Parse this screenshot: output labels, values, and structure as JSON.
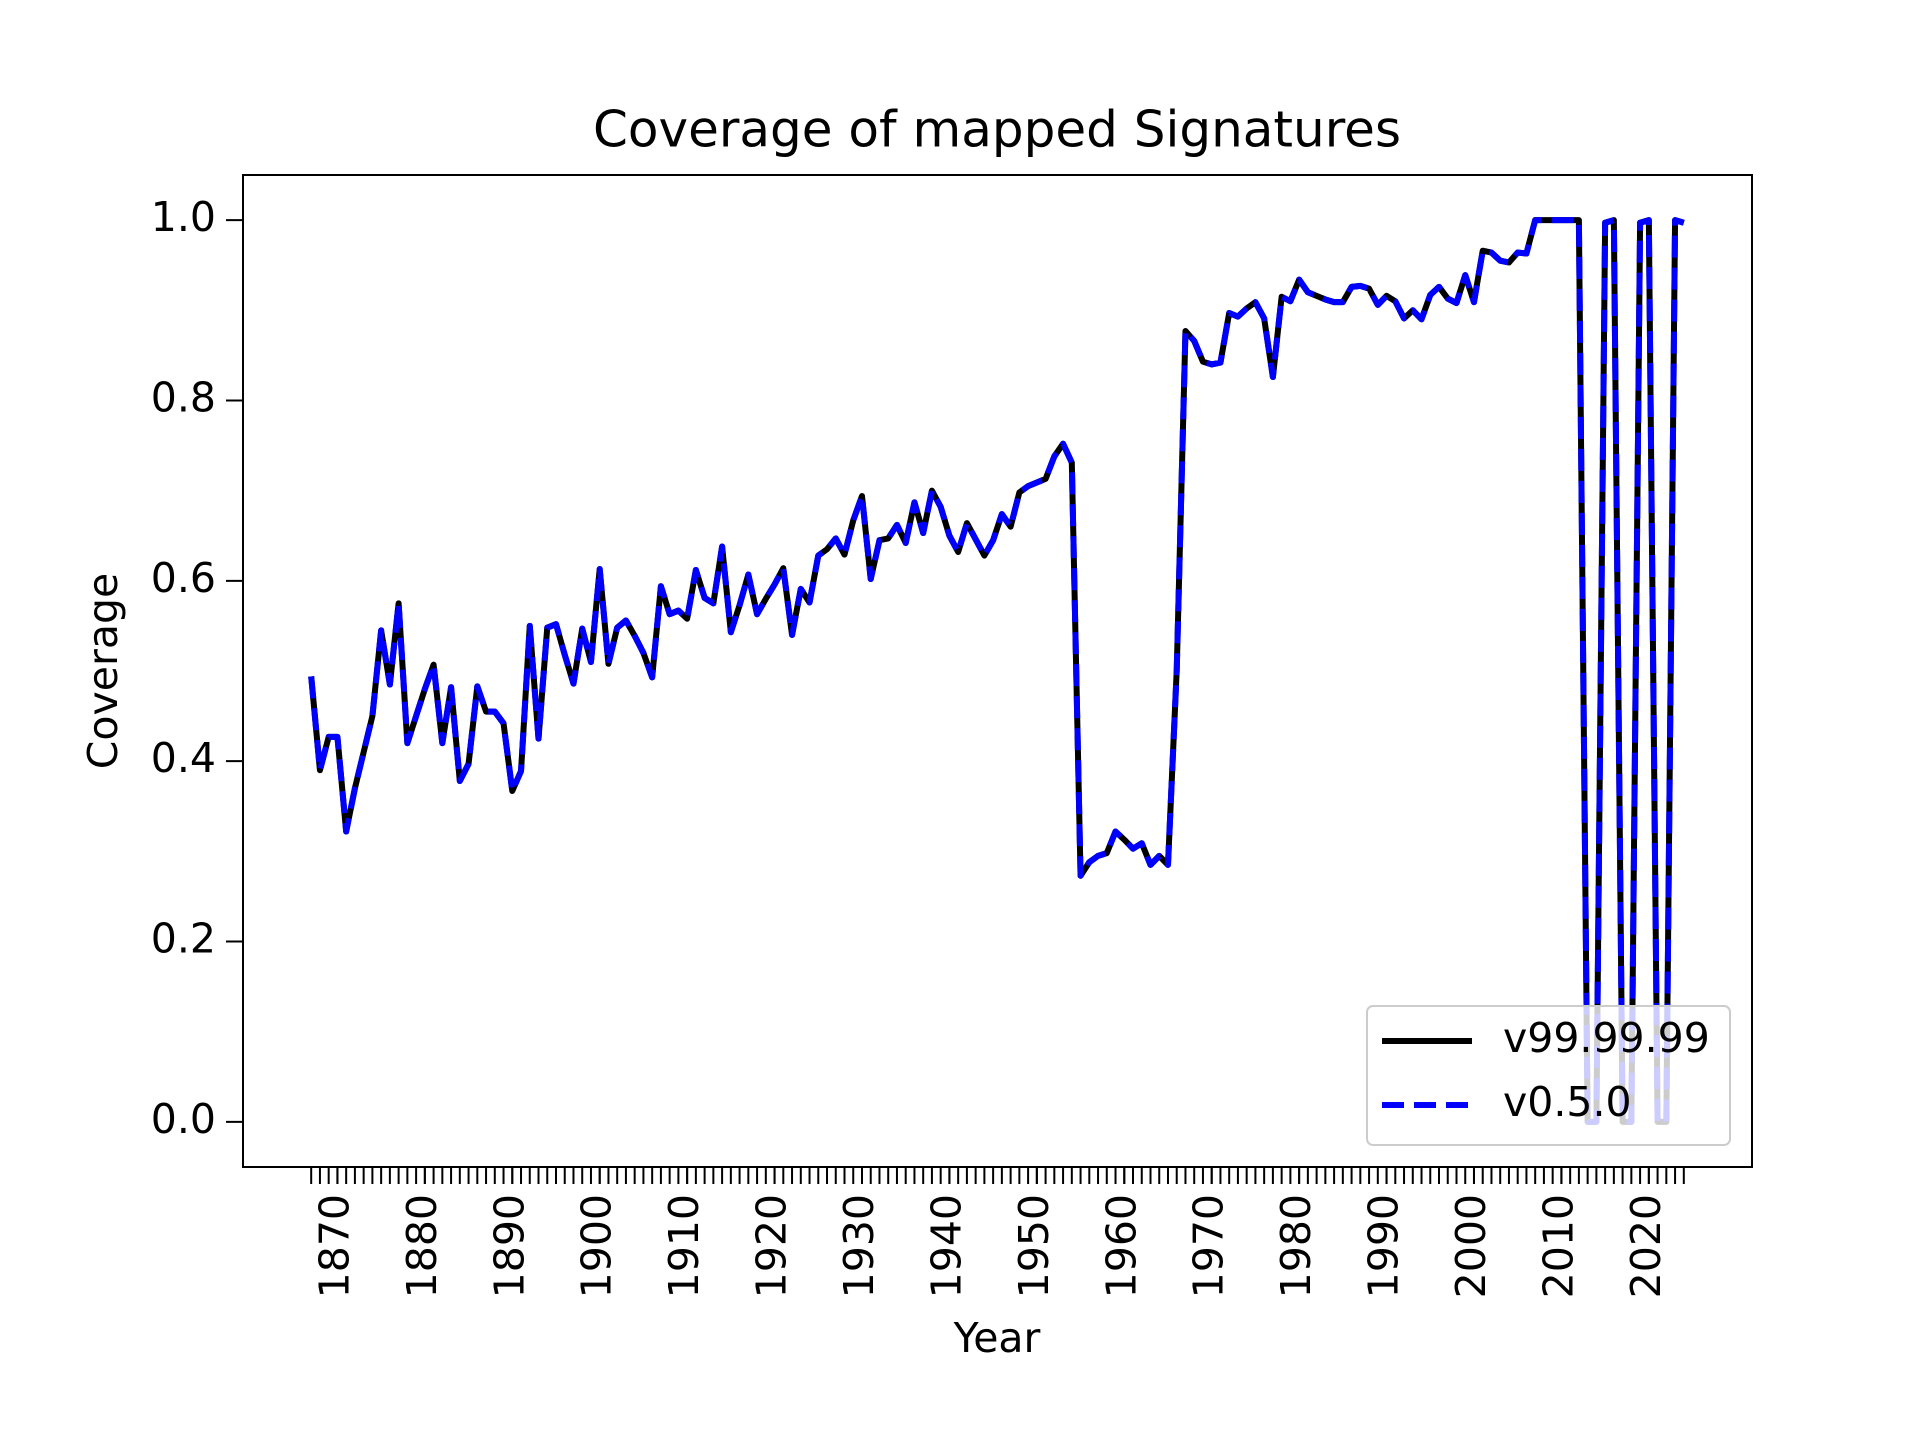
{
  "chart_data": {
    "type": "line",
    "title": "Coverage of mapped Signatures",
    "x_label": "Year",
    "y_label": "Coverage",
    "x": [
      1867,
      1868,
      1869,
      1870,
      1871,
      1872,
      1873,
      1874,
      1875,
      1876,
      1877,
      1878,
      1879,
      1880,
      1881,
      1882,
      1883,
      1884,
      1885,
      1886,
      1887,
      1888,
      1889,
      1890,
      1891,
      1892,
      1893,
      1894,
      1895,
      1896,
      1897,
      1898,
      1899,
      1900,
      1901,
      1902,
      1903,
      1904,
      1905,
      1906,
      1907,
      1908,
      1909,
      1910,
      1911,
      1912,
      1913,
      1914,
      1915,
      1916,
      1917,
      1918,
      1919,
      1920,
      1921,
      1922,
      1923,
      1924,
      1925,
      1926,
      1927,
      1928,
      1929,
      1930,
      1931,
      1932,
      1933,
      1934,
      1935,
      1936,
      1937,
      1938,
      1939,
      1940,
      1941,
      1942,
      1943,
      1944,
      1945,
      1946,
      1947,
      1948,
      1949,
      1950,
      1951,
      1952,
      1953,
      1954,
      1955,
      1956,
      1957,
      1958,
      1959,
      1960,
      1961,
      1962,
      1963,
      1964,
      1965,
      1966,
      1967,
      1968,
      1969,
      1970,
      1971,
      1972,
      1973,
      1974,
      1975,
      1976,
      1977,
      1978,
      1979,
      1980,
      1981,
      1982,
      1983,
      1984,
      1985,
      1986,
      1987,
      1988,
      1989,
      1990,
      1991,
      1992,
      1993,
      1994,
      1995,
      1996,
      1997,
      1998,
      1999,
      2000,
      2001,
      2002,
      2003,
      2004,
      2005,
      2006,
      2007,
      2008,
      2009,
      2010,
      2011,
      2012,
      2013,
      2014,
      2015,
      2016,
      2017,
      2018,
      2019,
      2020,
      2021,
      2022,
      2023,
      2024
    ],
    "series": [
      {
        "name": "v99.99.99",
        "color": "#000000",
        "dash": false,
        "values": [
          0.494,
          0.39,
          0.427,
          0.427,
          0.322,
          0.37,
          0.41,
          0.45,
          0.545,
          0.485,
          0.575,
          0.42,
          0.45,
          0.48,
          0.507,
          0.42,
          0.482,
          0.378,
          0.397,
          0.483,
          0.455,
          0.455,
          0.442,
          0.367,
          0.389,
          0.55,
          0.425,
          0.548,
          0.552,
          0.518,
          0.486,
          0.547,
          0.51,
          0.613,
          0.508,
          0.548,
          0.556,
          0.539,
          0.52,
          0.493,
          0.594,
          0.563,
          0.567,
          0.558,
          0.612,
          0.581,
          0.575,
          0.638,
          0.543,
          0.573,
          0.607,
          0.563,
          0.58,
          0.596,
          0.614,
          0.54,
          0.591,
          0.576,
          0.628,
          0.635,
          0.647,
          0.629,
          0.667,
          0.694,
          0.602,
          0.645,
          0.647,
          0.662,
          0.642,
          0.687,
          0.653,
          0.7,
          0.682,
          0.65,
          0.632,
          0.664,
          0.646,
          0.628,
          0.645,
          0.674,
          0.66,
          0.698,
          0.705,
          0.709,
          0.713,
          0.738,
          0.752,
          0.731,
          0.273,
          0.288,
          0.295,
          0.298,
          0.322,
          0.313,
          0.303,
          0.309,
          0.285,
          0.295,
          0.285,
          0.501,
          0.877,
          0.866,
          0.843,
          0.84,
          0.842,
          0.897,
          0.893,
          0.902,
          0.909,
          0.891,
          0.826,
          0.915,
          0.91,
          0.934,
          0.92,
          0.916,
          0.912,
          0.909,
          0.909,
          0.926,
          0.927,
          0.924,
          0.906,
          0.916,
          0.91,
          0.891,
          0.9,
          0.89,
          0.917,
          0.926,
          0.913,
          0.908,
          0.939,
          0.909,
          0.966,
          0.964,
          0.955,
          0.953,
          0.964,
          0.963,
          1.0,
          1.0,
          1.0,
          1.0,
          1.0,
          1.0,
          0,
          0,
          0.997,
          1.0,
          0,
          0,
          0.997,
          1.0,
          0,
          0,
          1.0,
          0.997
        ]
      },
      {
        "name": "v0.5.0",
        "color": "#0000ff",
        "dash": true,
        "values": [
          0.494,
          0.39,
          0.427,
          0.427,
          0.322,
          0.37,
          0.41,
          0.45,
          0.545,
          0.485,
          0.575,
          0.42,
          0.45,
          0.48,
          0.507,
          0.42,
          0.482,
          0.378,
          0.397,
          0.483,
          0.455,
          0.455,
          0.442,
          0.367,
          0.389,
          0.55,
          0.425,
          0.548,
          0.552,
          0.518,
          0.486,
          0.547,
          0.51,
          0.613,
          0.508,
          0.548,
          0.556,
          0.539,
          0.52,
          0.493,
          0.594,
          0.563,
          0.567,
          0.558,
          0.612,
          0.581,
          0.575,
          0.638,
          0.543,
          0.573,
          0.607,
          0.563,
          0.58,
          0.596,
          0.614,
          0.54,
          0.591,
          0.576,
          0.628,
          0.635,
          0.647,
          0.629,
          0.667,
          0.694,
          0.602,
          0.645,
          0.647,
          0.662,
          0.642,
          0.687,
          0.653,
          0.7,
          0.682,
          0.65,
          0.632,
          0.664,
          0.646,
          0.628,
          0.645,
          0.674,
          0.66,
          0.698,
          0.705,
          0.709,
          0.713,
          0.738,
          0.752,
          0.731,
          0.273,
          0.288,
          0.295,
          0.298,
          0.322,
          0.313,
          0.303,
          0.309,
          0.285,
          0.295,
          0.285,
          0.501,
          0.877,
          0.866,
          0.843,
          0.84,
          0.842,
          0.897,
          0.893,
          0.902,
          0.909,
          0.891,
          0.826,
          0.915,
          0.91,
          0.934,
          0.92,
          0.916,
          0.912,
          0.909,
          0.909,
          0.926,
          0.927,
          0.924,
          0.906,
          0.916,
          0.91,
          0.891,
          0.9,
          0.89,
          0.917,
          0.926,
          0.913,
          0.908,
          0.939,
          0.909,
          0.966,
          0.964,
          0.955,
          0.953,
          0.964,
          0.963,
          1.0,
          1.0,
          1.0,
          1.0,
          1.0,
          1.0,
          0,
          0,
          0.997,
          1.0,
          0,
          0,
          0.997,
          1.0,
          0,
          0,
          1.0,
          0.997
        ]
      }
    ],
    "xlim": [
      1859.2,
      2031.8
    ],
    "xticks": [
      1870,
      1880,
      1890,
      1900,
      1910,
      1920,
      1930,
      1940,
      1950,
      1960,
      1970,
      1980,
      1990,
      2000,
      2010,
      2020
    ],
    "ylim": [
      -0.05,
      1.05
    ],
    "yticks": [
      {
        "value": 0,
        "label": "0.0"
      },
      0.2,
      0.4,
      0.6,
      0.8,
      {
        "value": 1,
        "label": "1.0"
      }
    ],
    "grid": false,
    "legend": "lower right"
  }
}
